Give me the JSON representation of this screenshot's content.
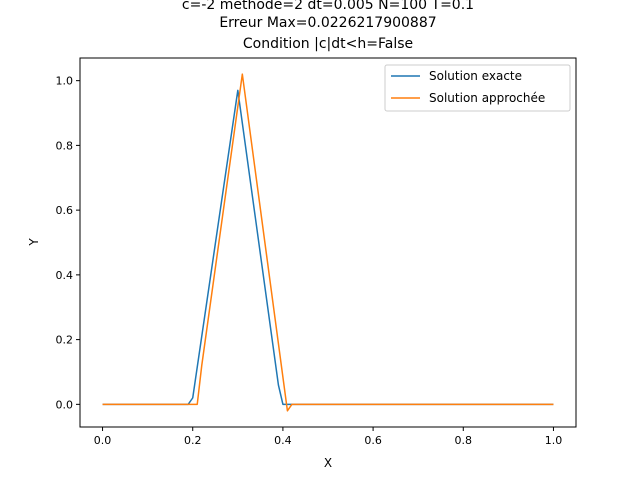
{
  "chart_data": {
    "type": "line",
    "title_lines": [
      "c=-2 methode=2 dt=0.005 N=100 T=0.1",
      "Erreur Max=0.0226217900887",
      "Condition |c|dt<h=False"
    ],
    "xlabel": "X",
    "ylabel": "Y",
    "xlim": [
      -0.05,
      1.05
    ],
    "ylim": [
      -0.07,
      1.07
    ],
    "xticks": [
      0.0,
      0.2,
      0.4,
      0.6,
      0.8,
      1.0
    ],
    "xtick_labels": [
      "0.0",
      "0.2",
      "0.4",
      "0.6",
      "0.8",
      "1.0"
    ],
    "yticks": [
      0.0,
      0.2,
      0.4,
      0.6,
      0.8,
      1.0
    ],
    "ytick_labels": [
      "0.0",
      "0.2",
      "0.4",
      "0.6",
      "0.8",
      "1.0"
    ],
    "grid": false,
    "legend_position": "top-right",
    "series": [
      {
        "name": "Solution exacte",
        "color": "#1f77b4",
        "x": [
          0.0,
          0.19,
          0.2,
          0.3,
          0.39,
          0.4,
          1.0
        ],
        "y": [
          0.0,
          0.0,
          0.02,
          0.97,
          0.06,
          0.0,
          0.0
        ]
      },
      {
        "name": "Solution approchée",
        "color": "#ff7f0e",
        "x": [
          0.0,
          0.21,
          0.22,
          0.31,
          0.41,
          0.42,
          1.0
        ],
        "y": [
          0.0,
          0.0,
          0.12,
          1.02,
          -0.02,
          0.0,
          0.0
        ]
      }
    ]
  }
}
